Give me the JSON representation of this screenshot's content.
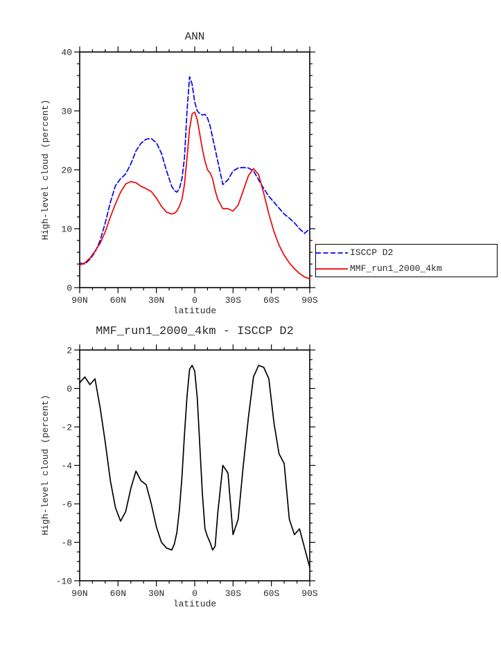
{
  "page": {
    "background": "#ffffff"
  },
  "chart_data": [
    {
      "type": "line",
      "title": "ANN",
      "xlabel": "latitude",
      "ylabel": "High-level cloud (percent)",
      "xlim": [
        90,
        -90
      ],
      "ylim": [
        0,
        40
      ],
      "grid": false,
      "legend_position": "lower right",
      "xticks": {
        "values": [
          90,
          60,
          30,
          0,
          -30,
          -60,
          -90
        ],
        "labels": [
          "90N",
          "60N",
          "30N",
          "0",
          "30S",
          "60S",
          "90S"
        ],
        "minor_step": 10
      },
      "yticks": {
        "values": [
          0,
          10,
          20,
          30,
          40
        ],
        "labels": [
          "0",
          "10",
          "20",
          "30",
          "40"
        ],
        "minor_step": 2
      },
      "x": [
        90,
        86,
        82,
        78,
        74,
        70,
        66,
        62,
        58,
        54,
        50,
        46,
        42,
        38,
        34,
        30,
        26,
        22,
        18,
        16,
        14,
        12,
        10,
        8,
        6,
        4,
        2,
        0,
        -2,
        -4,
        -6,
        -8,
        -10,
        -12,
        -14,
        -16,
        -18,
        -22,
        -26,
        -30,
        -34,
        -38,
        -42,
        -46,
        -50,
        -54,
        -58,
        -62,
        -66,
        -70,
        -74,
        -78,
        -82,
        -86,
        -90
      ],
      "series": [
        {
          "name": "ISCCP D2",
          "color": "#0000ee",
          "style": "dashed",
          "values": [
            4.2,
            4.0,
            4.8,
            6.0,
            8.0,
            11.0,
            14.5,
            17.3,
            18.5,
            19.3,
            21.0,
            23.2,
            24.5,
            25.2,
            25.3,
            24.6,
            22.8,
            19.8,
            17.2,
            16.5,
            16.2,
            16.8,
            18.5,
            22.0,
            30.0,
            35.8,
            34.5,
            31.5,
            30.0,
            29.5,
            29.3,
            29.4,
            28.8,
            27.5,
            25.5,
            23.5,
            21.5,
            17.5,
            18.3,
            19.8,
            20.3,
            20.4,
            20.3,
            19.8,
            18.3,
            16.8,
            15.5,
            14.5,
            13.5,
            12.5,
            11.8,
            11.0,
            10.0,
            9.2,
            10.0
          ]
        },
        {
          "name": "MMF_run1_2000_4km",
          "color": "#ee0000",
          "style": "solid",
          "values": [
            3.8,
            4.2,
            5.0,
            6.2,
            7.5,
            9.5,
            12.0,
            14.2,
            16.2,
            17.6,
            18.0,
            17.8,
            17.2,
            16.8,
            16.3,
            15.2,
            13.8,
            12.8,
            12.5,
            12.6,
            13.0,
            13.8,
            15.0,
            17.5,
            22.0,
            27.0,
            29.5,
            29.8,
            28.5,
            26.0,
            23.5,
            21.5,
            20.0,
            19.5,
            18.5,
            16.5,
            15.0,
            13.4,
            13.4,
            13.0,
            14.0,
            16.5,
            19.0,
            20.2,
            19.2,
            16.0,
            12.5,
            9.5,
            7.2,
            5.5,
            4.2,
            3.2,
            2.4,
            1.8,
            1.5
          ]
        }
      ]
    },
    {
      "type": "line",
      "title": "MMF_run1_2000_4km - ISCCP D2",
      "xlabel": "latitude",
      "ylabel": "High-level cloud (percent)",
      "xlim": [
        90,
        -90
      ],
      "ylim": [
        -10,
        2
      ],
      "grid": false,
      "xticks": {
        "values": [
          90,
          60,
          30,
          0,
          -30,
          -60,
          -90
        ],
        "labels": [
          "90N",
          "60N",
          "30N",
          "0",
          "30S",
          "60S",
          "90S"
        ],
        "minor_step": 10
      },
      "yticks": {
        "values": [
          2,
          0,
          -2,
          -4,
          -6,
          -8,
          -10
        ],
        "labels": [
          "2",
          "0",
          "-2",
          "-4",
          "-6",
          "-8",
          "-10"
        ],
        "minor_step": 0.5
      },
      "x": [
        90,
        86,
        82,
        78,
        74,
        70,
        66,
        62,
        58,
        54,
        50,
        46,
        42,
        38,
        34,
        30,
        26,
        22,
        18,
        16,
        14,
        12,
        10,
        8,
        6,
        4,
        2,
        0,
        -2,
        -4,
        -6,
        -8,
        -10,
        -12,
        -14,
        -16,
        -18,
        -22,
        -26,
        -30,
        -34,
        -38,
        -42,
        -46,
        -50,
        -54,
        -58,
        -62,
        -66,
        -70,
        -74,
        -78,
        -82,
        -86,
        -90
      ],
      "series": [
        {
          "name": "MMF_run1_2000_4km - ISCCP D2",
          "color": "#000000",
          "style": "solid",
          "values": [
            0.3,
            0.6,
            0.2,
            0.5,
            -1.0,
            -2.8,
            -4.8,
            -6.2,
            -6.9,
            -6.4,
            -5.2,
            -4.3,
            -4.8,
            -5.0,
            -6.0,
            -7.2,
            -8.0,
            -8.3,
            -8.4,
            -8.1,
            -7.5,
            -6.3,
            -4.6,
            -2.4,
            -0.4,
            1.0,
            1.2,
            0.9,
            -0.5,
            -3.0,
            -5.5,
            -7.3,
            -7.7,
            -8.0,
            -8.4,
            -8.2,
            -6.5,
            -4.0,
            -4.4,
            -7.6,
            -6.8,
            -4.0,
            -1.5,
            0.6,
            1.2,
            1.1,
            0.5,
            -1.8,
            -3.4,
            -3.9,
            -6.8,
            -7.6,
            -7.3,
            -8.3,
            -9.3
          ]
        }
      ]
    }
  ]
}
